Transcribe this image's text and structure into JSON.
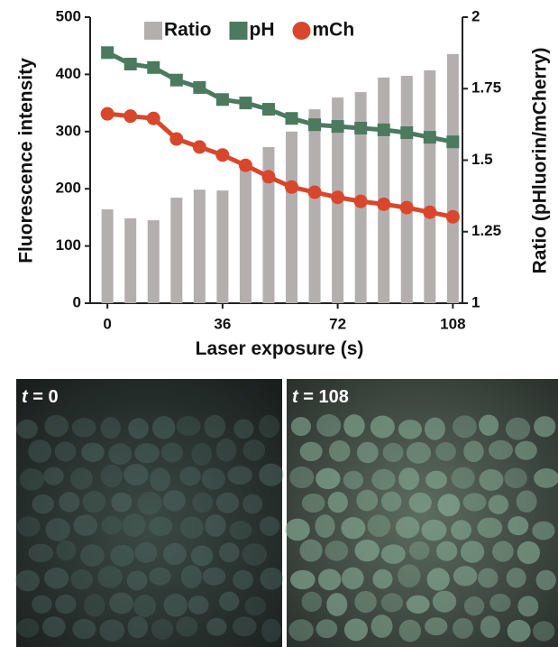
{
  "chart_data": {
    "type": "combo",
    "xlabel": "Laser exposure (s)",
    "ylabel": "Fluorescence intensity",
    "y2label": "Ratio (pHluorin/mCherry)",
    "x": [
      0,
      7.2,
      14.4,
      21.6,
      28.8,
      36,
      43.2,
      50.4,
      57.6,
      64.8,
      72,
      79.2,
      86.4,
      93.6,
      100.8,
      108
    ],
    "xlim": [
      -5.4,
      111
    ],
    "xticks": [
      0,
      36,
      72,
      108
    ],
    "ylim": [
      0,
      500
    ],
    "yticks": [
      0,
      100,
      200,
      300,
      400,
      500
    ],
    "y2lim": [
      1,
      2
    ],
    "y2ticks": [
      1,
      1.25,
      1.5,
      1.75,
      2
    ],
    "legend": "top",
    "series": [
      {
        "name": "Ratio",
        "type": "bar",
        "axis": "y2",
        "color": "#b4afaf",
        "values": [
          1.328,
          1.297,
          1.29,
          1.369,
          1.397,
          1.394,
          1.473,
          1.546,
          1.6,
          1.678,
          1.719,
          1.738,
          1.789,
          1.795,
          1.814,
          1.871
        ]
      },
      {
        "name": "pH",
        "type": "line",
        "marker": "square",
        "color": "#4b7a5f",
        "values": [
          438,
          418,
          412,
          390,
          377,
          356,
          350,
          339,
          323,
          312,
          309,
          306,
          303,
          298,
          290,
          282
        ]
      },
      {
        "name": "mCh",
        "type": "line",
        "marker": "circle",
        "color": "#d8472c",
        "values": [
          331,
          327,
          323,
          287,
          273,
          259,
          241,
          221,
          203,
          194,
          185,
          178,
          173,
          167,
          159,
          151
        ]
      }
    ]
  },
  "panels": [
    {
      "variable": "t",
      "value_text": "= 0"
    },
    {
      "variable": "t",
      "value_text": "= 108"
    }
  ]
}
